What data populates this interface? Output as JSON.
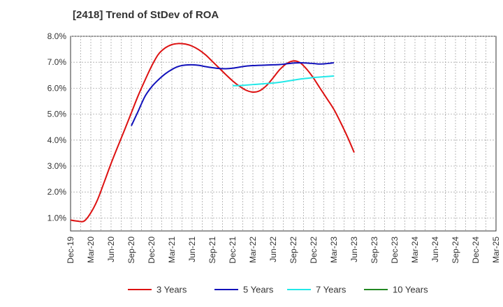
{
  "chart_data": {
    "type": "line",
    "title": "[2418]  Trend of StDev of ROA",
    "xlabel": "",
    "ylabel": "",
    "ylim": [
      0.5,
      8.0
    ],
    "y_ticks": [
      1.0,
      2.0,
      3.0,
      4.0,
      5.0,
      6.0,
      7.0,
      8.0
    ],
    "y_tick_labels": [
      "1.0%",
      "2.0%",
      "3.0%",
      "4.0%",
      "5.0%",
      "6.0%",
      "7.0%",
      "8.0%"
    ],
    "x_tick_labels": [
      "Dec-19",
      "Mar-20",
      "Jun-20",
      "Sep-20",
      "Dec-20",
      "Mar-21",
      "Jun-21",
      "Sep-21",
      "Dec-21",
      "Mar-22",
      "Jun-22",
      "Sep-22",
      "Dec-22",
      "Mar-23",
      "Jun-23",
      "Sep-23",
      "Dec-23",
      "Mar-24",
      "Jun-24",
      "Sep-24",
      "Dec-24",
      "Mar-25"
    ],
    "grid": true,
    "legend_position": "bottom",
    "series": [
      {
        "name": "3 Years",
        "color": "#dd1111",
        "values": [
          [
            0,
            0.92
          ],
          [
            0.33,
            0.88
          ],
          [
            0.67,
            0.88
          ],
          [
            1,
            1.2
          ],
          [
            1.33,
            1.7
          ],
          [
            1.67,
            2.4
          ],
          [
            2,
            3.1
          ],
          [
            2.33,
            3.75
          ],
          [
            2.67,
            4.4
          ],
          [
            3,
            5.05
          ],
          [
            3.33,
            5.7
          ],
          [
            3.67,
            6.3
          ],
          [
            4,
            6.85
          ],
          [
            4.33,
            7.3
          ],
          [
            4.67,
            7.55
          ],
          [
            5,
            7.68
          ],
          [
            5.33,
            7.72
          ],
          [
            5.67,
            7.7
          ],
          [
            6,
            7.62
          ],
          [
            6.33,
            7.48
          ],
          [
            6.67,
            7.28
          ],
          [
            7,
            7.03
          ],
          [
            7.33,
            6.78
          ],
          [
            7.67,
            6.52
          ],
          [
            8,
            6.28
          ],
          [
            8.33,
            6.08
          ],
          [
            8.67,
            5.92
          ],
          [
            9,
            5.85
          ],
          [
            9.33,
            5.9
          ],
          [
            9.67,
            6.1
          ],
          [
            10,
            6.4
          ],
          [
            10.33,
            6.72
          ],
          [
            10.67,
            6.95
          ],
          [
            11,
            7.05
          ],
          [
            11.33,
            6.98
          ],
          [
            11.67,
            6.72
          ],
          [
            12,
            6.38
          ],
          [
            12.33,
            5.98
          ],
          [
            12.67,
            5.58
          ],
          [
            13,
            5.18
          ],
          [
            13.33,
            4.68
          ],
          [
            13.67,
            4.12
          ],
          [
            14,
            3.52
          ]
        ]
      },
      {
        "name": "5 Years",
        "color": "#1111bb",
        "values": [
          [
            3,
            4.55
          ],
          [
            3.33,
            5.1
          ],
          [
            3.67,
            5.68
          ],
          [
            4,
            6.05
          ],
          [
            4.33,
            6.32
          ],
          [
            4.67,
            6.55
          ],
          [
            5,
            6.72
          ],
          [
            5.33,
            6.84
          ],
          [
            5.67,
            6.89
          ],
          [
            6,
            6.9
          ],
          [
            6.33,
            6.88
          ],
          [
            6.67,
            6.83
          ],
          [
            7,
            6.79
          ],
          [
            7.33,
            6.76
          ],
          [
            7.67,
            6.75
          ],
          [
            8,
            6.77
          ],
          [
            8.33,
            6.81
          ],
          [
            8.67,
            6.85
          ],
          [
            9,
            6.87
          ],
          [
            9.33,
            6.88
          ],
          [
            9.67,
            6.89
          ],
          [
            10,
            6.9
          ],
          [
            10.33,
            6.91
          ],
          [
            10.67,
            6.94
          ],
          [
            11,
            6.97
          ],
          [
            11.33,
            6.98
          ],
          [
            11.67,
            6.97
          ],
          [
            12,
            6.95
          ],
          [
            12.33,
            6.93
          ],
          [
            12.67,
            6.95
          ],
          [
            13,
            6.98
          ]
        ]
      },
      {
        "name": "7 Years",
        "color": "#22e8e8",
        "values": [
          [
            8,
            6.1
          ],
          [
            8.33,
            6.1
          ],
          [
            8.67,
            6.12
          ],
          [
            9,
            6.14
          ],
          [
            9.33,
            6.16
          ],
          [
            9.67,
            6.18
          ],
          [
            10,
            6.2
          ],
          [
            10.33,
            6.23
          ],
          [
            10.67,
            6.27
          ],
          [
            11,
            6.31
          ],
          [
            11.33,
            6.35
          ],
          [
            11.67,
            6.38
          ],
          [
            12,
            6.41
          ],
          [
            12.33,
            6.43
          ],
          [
            12.67,
            6.45
          ],
          [
            13,
            6.47
          ]
        ]
      },
      {
        "name": "10 Years",
        "color": "#228822",
        "values": []
      }
    ]
  }
}
